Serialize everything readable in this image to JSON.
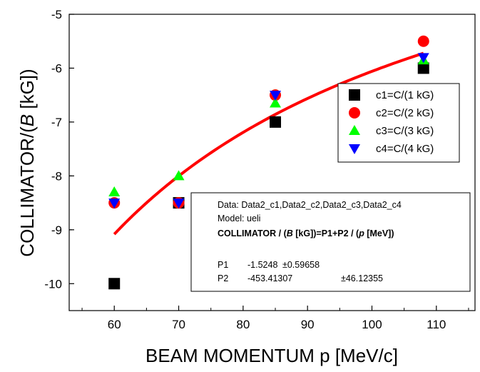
{
  "chart_data": {
    "type": "scatter",
    "xlabel": "BEAM MOMENTUM p [MeV/c]",
    "ylabel_prefix": "COLLIMATOR/(",
    "ylabel_italic": "B",
    "ylabel_suffix": " [kG])",
    "xlim": [
      53,
      116
    ],
    "ylim": [
      -10.5,
      -5
    ],
    "xticks": [
      60,
      70,
      80,
      90,
      100,
      110
    ],
    "yticks": [
      -10,
      -9,
      -8,
      -7,
      -6,
      -5
    ],
    "grid": false,
    "legend_position": "right",
    "series": [
      {
        "name": "c1=C/(1 kG)",
        "marker": "square",
        "color": "#000000",
        "x": [
          60,
          70,
          85,
          108
        ],
        "y": [
          -10,
          -8.5,
          -7,
          -6
        ]
      },
      {
        "name": "c2=C/(2 kG)",
        "marker": "circle",
        "color": "#ff0000",
        "x": [
          60,
          70,
          85,
          108
        ],
        "y": [
          -8.5,
          -8.5,
          -6.5,
          -5.5
        ]
      },
      {
        "name": "c3=C/(3 kG)",
        "marker": "triangle-up",
        "color": "#00ff00",
        "x": [
          60,
          70,
          85,
          108
        ],
        "y": [
          -8.3,
          -8.0,
          -6.65,
          -5.85
        ]
      },
      {
        "name": "c4=C/(4 kG)",
        "marker": "triangle-down",
        "color": "#0000ff",
        "x": [
          60,
          70,
          85,
          108
        ],
        "y": [
          -8.5,
          -8.5,
          -6.5,
          -5.8
        ]
      }
    ],
    "fit": {
      "color": "#ff0000",
      "x_range": [
        60,
        108
      ],
      "p1": -1.5248,
      "p2": -453.41307,
      "box": {
        "data_line": "Data: Data2_c1,Data2_c2,Data2_c3,Data2_c4",
        "model_line": "Model: ueli",
        "eq_part1": "COLLIMATOR / (",
        "eq_italic1": "B",
        "eq_part2": " [kG])=P1+P2 / (",
        "eq_italic2": "p",
        "eq_part3": " [MeV])",
        "rows": [
          {
            "name": "P1",
            "value": "-1.5248",
            "error": "±0.59658"
          },
          {
            "name": "P2",
            "value": "-453.41307",
            "error": "±46.12355"
          }
        ]
      }
    }
  }
}
